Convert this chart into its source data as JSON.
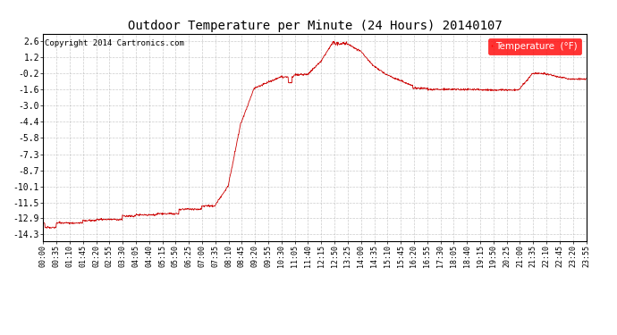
{
  "title": "Outdoor Temperature per Minute (24 Hours) 20140107",
  "copyright_text": "Copyright 2014 Cartronics.com",
  "legend_label": "Temperature  (°F)",
  "line_color": "#cc0000",
  "background_color": "#ffffff",
  "grid_color": "#aaaaaa",
  "yticks": [
    2.6,
    1.2,
    -0.2,
    -1.6,
    -3.0,
    -4.4,
    -5.8,
    -7.3,
    -8.7,
    -10.1,
    -11.5,
    -12.9,
    -14.3
  ],
  "ylim": [
    -14.9,
    3.3
  ],
  "xtick_labels": [
    "00:00",
    "00:35",
    "01:10",
    "01:45",
    "02:20",
    "02:55",
    "03:30",
    "04:05",
    "04:40",
    "05:15",
    "05:50",
    "06:25",
    "07:00",
    "07:35",
    "08:10",
    "08:45",
    "09:20",
    "09:55",
    "10:30",
    "11:05",
    "11:40",
    "12:15",
    "12:50",
    "13:25",
    "14:00",
    "14:35",
    "15:10",
    "15:45",
    "16:20",
    "16:55",
    "17:30",
    "18:05",
    "18:40",
    "19:15",
    "19:50",
    "20:25",
    "21:00",
    "21:35",
    "22:10",
    "22:45",
    "23:20",
    "23:55"
  ],
  "num_points": 1440
}
